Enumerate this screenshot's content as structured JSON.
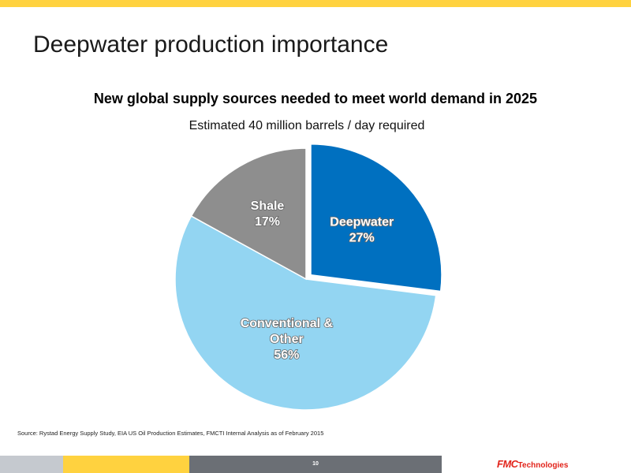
{
  "slide": {
    "title": "Deepwater production importance",
    "page_number": "10",
    "source": "Source: Rystad  Energy Supply Study, EIA US Oil Production Estimates,  FMCTI Internal Analysis as of February 2015",
    "logo": {
      "mark": "FMC",
      "text": "Technologies",
      "color": "#e2231a"
    },
    "colors": {
      "accent_yellow": "#ffd23f",
      "footer_gray": "#6b6f75",
      "footer_light": "#c5c9cf"
    }
  },
  "chart_data": {
    "type": "pie",
    "title": "New global supply sources needed to meet world demand in 2025",
    "subtitle": "Estimated 40 million barrels / day required",
    "slices": [
      {
        "label_lines": [
          "Deepwater",
          "27%"
        ],
        "value": 27,
        "color": "#0070c0",
        "exploded": true
      },
      {
        "label_lines": [
          "Conventional &",
          "Other",
          "56%"
        ],
        "value": 56,
        "color": "#93d5f2",
        "exploded": false
      },
      {
        "label_lines": [
          "Shale",
          "17%"
        ],
        "value": 17,
        "color": "#8e8e8e",
        "exploded": false
      }
    ],
    "start": "12 o'clock",
    "direction": "clockwise",
    "legend": "none"
  }
}
